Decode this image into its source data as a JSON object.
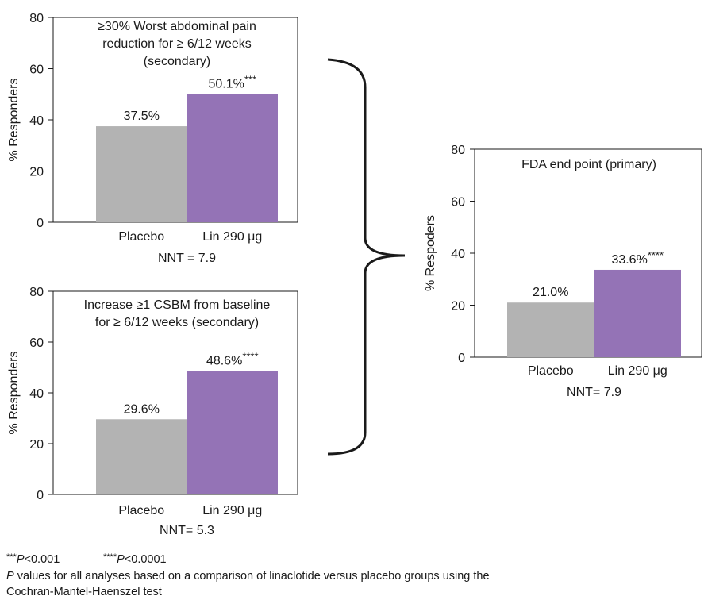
{
  "chart_data": [
    {
      "type": "bar",
      "title": [
        "≥30% Worst abdominal pain",
        "reduction for ≥ 6/12 weeks",
        "(secondary)"
      ],
      "ylabel": "% Responders",
      "categories": [
        "Placebo",
        "Lin 290 μg"
      ],
      "values": [
        37.5,
        50.1
      ],
      "value_labels": [
        "37.5%",
        "50.1%"
      ],
      "significance": [
        null,
        "***"
      ],
      "colors": [
        "#b3b3b3",
        "#9473b6"
      ],
      "annotation": "NNT = 7.9",
      "ylim": [
        0,
        80
      ],
      "yticks": [
        0,
        20,
        40,
        60,
        80
      ]
    },
    {
      "type": "bar",
      "title": [
        "Increase ≥1 CSBM from baseline",
        "for ≥ 6/12 weeks (secondary)"
      ],
      "ylabel": "% Responders",
      "categories": [
        "Placebo",
        "Lin 290 μg"
      ],
      "values": [
        29.6,
        48.6
      ],
      "value_labels": [
        "29.6%",
        "48.6%"
      ],
      "significance": [
        null,
        "****"
      ],
      "colors": [
        "#b3b3b3",
        "#9473b6"
      ],
      "annotation": "NNT= 5.3",
      "ylim": [
        0,
        80
      ],
      "yticks": [
        0,
        20,
        40,
        60,
        80
      ]
    },
    {
      "type": "bar",
      "title": [
        "FDA end point (primary)"
      ],
      "ylabel": "% Respoders",
      "categories": [
        "Placebo",
        "Lin 290 μg"
      ],
      "values": [
        21.0,
        33.6
      ],
      "value_labels": [
        "21.0%",
        "33.6%"
      ],
      "significance": [
        null,
        "****"
      ],
      "colors": [
        "#b3b3b3",
        "#9473b6"
      ],
      "annotation": "NNT= 7.9",
      "ylim": [
        0,
        80
      ],
      "yticks": [
        0,
        20,
        40,
        60,
        80
      ]
    }
  ],
  "footnotes": {
    "significance": [
      {
        "stars": "***",
        "p": "P",
        "text": "<0.001"
      },
      {
        "stars": "****",
        "p": "P",
        "text": "<0.0001"
      }
    ],
    "note": {
      "p": "P",
      "line1": " values for all analyses based on a comparison of linaclotide versus placebo groups using the",
      "line2": "Cochran-Mantel-Haenszel test"
    }
  }
}
